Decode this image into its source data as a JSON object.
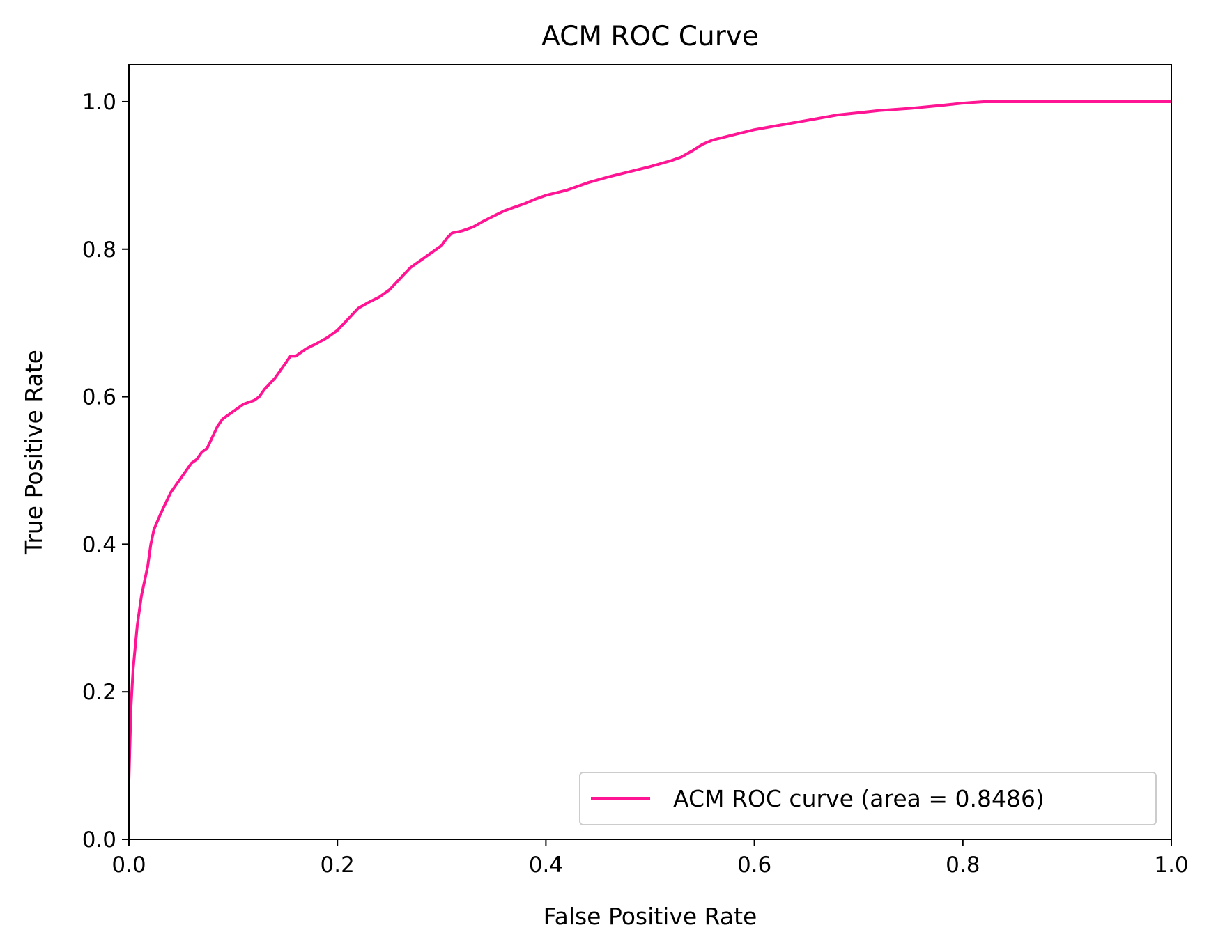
{
  "chart_data": {
    "type": "line",
    "title": "ACM ROC Curve",
    "xlabel": "False Positive Rate",
    "ylabel": "True Positive Rate",
    "xlim": [
      0.0,
      1.0
    ],
    "ylim": [
      0.0,
      1.05
    ],
    "xticks": [
      0.0,
      0.2,
      0.4,
      0.6,
      0.8,
      1.0
    ],
    "yticks": [
      0.0,
      0.2,
      0.4,
      0.6,
      0.8,
      1.0
    ],
    "xtick_labels": [
      "0.0",
      "0.2",
      "0.4",
      "0.6",
      "0.8",
      "1.0"
    ],
    "ytick_labels": [
      "0.0",
      "0.2",
      "0.4",
      "0.6",
      "0.8",
      "1.0"
    ],
    "grid": false,
    "legend": {
      "position": "lower-right"
    },
    "series": [
      {
        "name": "ACM ROC curve (area = 0.8486)",
        "color": "#ff1493",
        "x": [
          0.0,
          0.0,
          0.002,
          0.004,
          0.006,
          0.008,
          0.01,
          0.012,
          0.015,
          0.018,
          0.021,
          0.024,
          0.027,
          0.03,
          0.035,
          0.04,
          0.045,
          0.05,
          0.055,
          0.06,
          0.065,
          0.07,
          0.075,
          0.08,
          0.085,
          0.09,
          0.1,
          0.11,
          0.12,
          0.125,
          0.13,
          0.14,
          0.15,
          0.155,
          0.16,
          0.17,
          0.18,
          0.19,
          0.2,
          0.21,
          0.22,
          0.23,
          0.24,
          0.25,
          0.26,
          0.27,
          0.28,
          0.29,
          0.3,
          0.305,
          0.31,
          0.32,
          0.33,
          0.34,
          0.35,
          0.36,
          0.37,
          0.38,
          0.39,
          0.4,
          0.42,
          0.44,
          0.46,
          0.48,
          0.5,
          0.52,
          0.53,
          0.54,
          0.55,
          0.56,
          0.58,
          0.6,
          0.62,
          0.64,
          0.66,
          0.68,
          0.7,
          0.72,
          0.75,
          0.78,
          0.8,
          0.82,
          0.85,
          0.9,
          1.0
        ],
        "y": [
          0.0,
          0.08,
          0.18,
          0.23,
          0.26,
          0.29,
          0.31,
          0.33,
          0.35,
          0.37,
          0.4,
          0.42,
          0.43,
          0.44,
          0.455,
          0.47,
          0.48,
          0.49,
          0.5,
          0.51,
          0.515,
          0.525,
          0.53,
          0.545,
          0.56,
          0.57,
          0.58,
          0.59,
          0.595,
          0.6,
          0.61,
          0.625,
          0.645,
          0.655,
          0.655,
          0.665,
          0.672,
          0.68,
          0.69,
          0.705,
          0.72,
          0.728,
          0.735,
          0.745,
          0.76,
          0.775,
          0.785,
          0.795,
          0.805,
          0.815,
          0.822,
          0.825,
          0.83,
          0.838,
          0.845,
          0.852,
          0.857,
          0.862,
          0.868,
          0.873,
          0.88,
          0.89,
          0.898,
          0.905,
          0.912,
          0.92,
          0.925,
          0.933,
          0.942,
          0.948,
          0.955,
          0.962,
          0.967,
          0.972,
          0.977,
          0.982,
          0.985,
          0.988,
          0.991,
          0.995,
          0.998,
          1.0,
          1.0,
          1.0,
          1.0
        ]
      }
    ]
  }
}
